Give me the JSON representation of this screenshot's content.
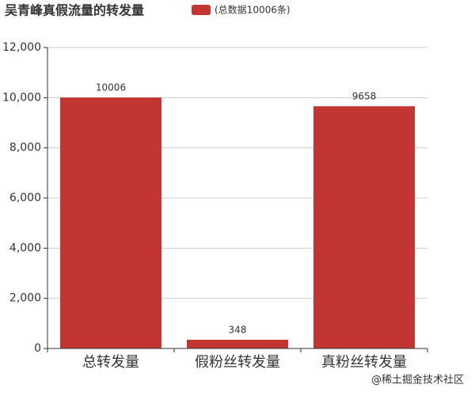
{
  "chart_data": {
    "type": "bar",
    "title": "吴青峰真假流量的转发量",
    "legend": [
      "(总数据10006条)"
    ],
    "categories": [
      "总转发量",
      "假粉丝转发量",
      "真粉丝转发量"
    ],
    "values": [
      10006,
      348,
      9658
    ],
    "color": "#c23531",
    "ylim": [
      0,
      12000
    ],
    "yticks": [
      0,
      {
        "value": 2000,
        "label": "2,000"
      },
      {
        "value": 4000,
        "label": "4,000"
      },
      {
        "value": 6000,
        "label": "6,000"
      },
      {
        "value": 8000,
        "label": "8,000"
      },
      {
        "value": 10000,
        "label": "10,000"
      },
      {
        "value": 12000,
        "label": "12,000"
      }
    ],
    "grid": true,
    "watermark": "@稀土掘金技术社区"
  }
}
